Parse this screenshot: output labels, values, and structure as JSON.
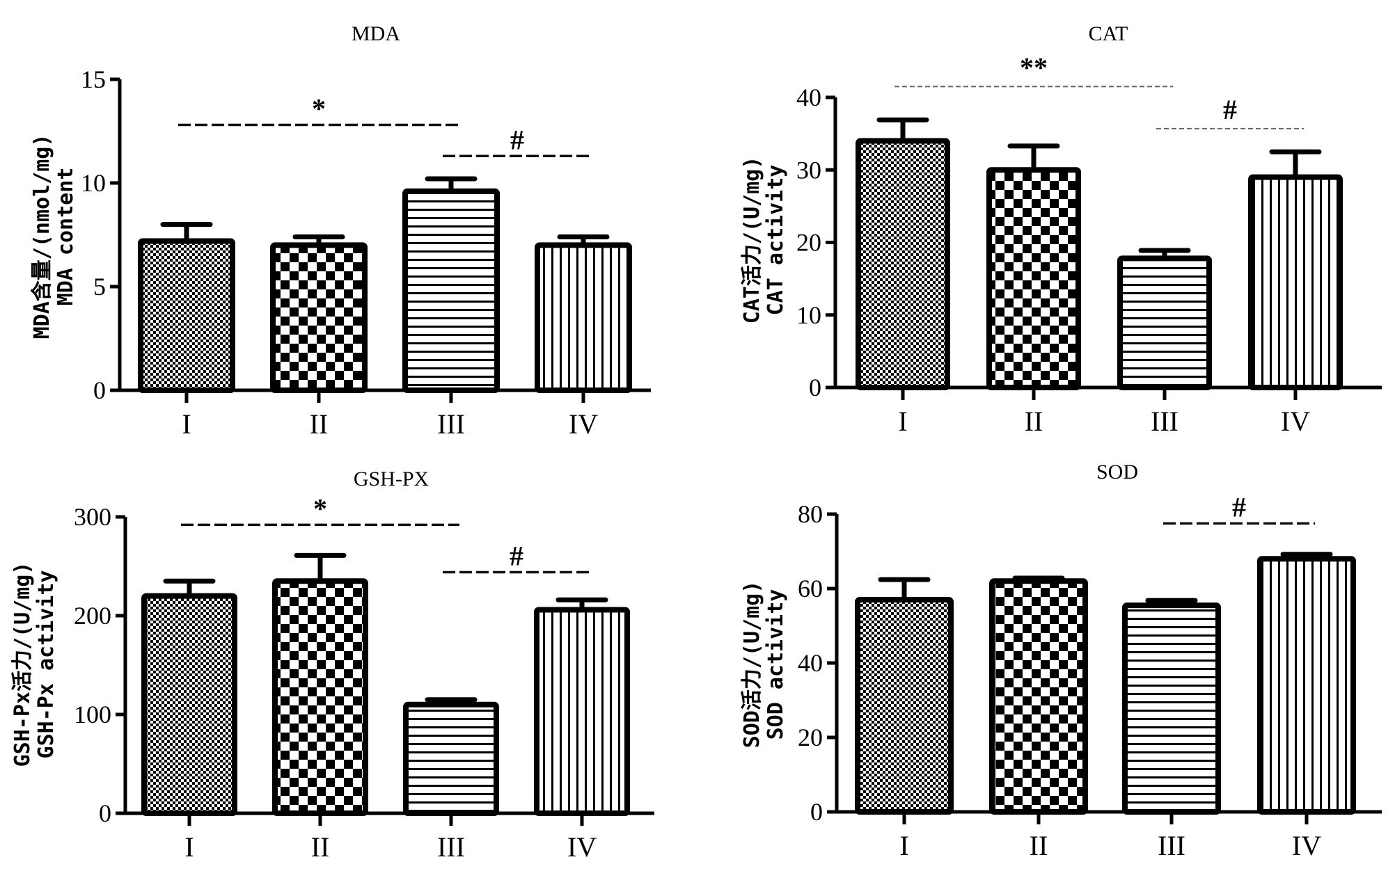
{
  "chart_data": [
    {
      "type": "bar",
      "title": "MDA",
      "ylabel_line1": "MDA含量/(nmol/mg)",
      "ylabel_line2": "MDA content",
      "xlabel": "",
      "categories": [
        "I",
        "II",
        "III",
        "IV"
      ],
      "values": [
        7.2,
        7.0,
        9.6,
        7.0
      ],
      "error_upper": [
        0.8,
        0.4,
        0.6,
        0.4
      ],
      "ylim": [
        0,
        15
      ],
      "yticks": [
        0,
        5,
        10,
        15
      ],
      "significance": [
        {
          "from": "I",
          "to": "III",
          "label": "*",
          "y": 12.8,
          "style": "dark"
        },
        {
          "from": "III",
          "to": "IV",
          "label": "#",
          "y": 11.3,
          "style": "dark"
        }
      ],
      "grid": false
    },
    {
      "type": "bar",
      "title": "CAT",
      "ylabel_line1": "CAT活力/(U/mg)",
      "ylabel_line2": "CAT activity",
      "xlabel": "",
      "categories": [
        "I",
        "II",
        "III",
        "IV"
      ],
      "values": [
        34,
        30,
        17.8,
        29
      ],
      "error_upper": [
        2.9,
        3.3,
        1.1,
        3.5
      ],
      "ylim": [
        0,
        40
      ],
      "yticks": [
        0,
        10,
        20,
        30,
        40
      ],
      "significance": [
        {
          "from": "I",
          "to": "III",
          "label": "**",
          "y": 41.5,
          "style": "light"
        },
        {
          "from": "III",
          "to": "IV",
          "label": "#",
          "y": 35.7,
          "style": "light"
        }
      ],
      "grid": false
    },
    {
      "type": "bar",
      "title": "GSH-PX",
      "ylabel_line1": "GSH-Px活力/(U/mg)",
      "ylabel_line2": "GSH-Px activity",
      "xlabel": "",
      "categories": [
        "I",
        "II",
        "III",
        "IV"
      ],
      "values": [
        220,
        235,
        110,
        206
      ],
      "error_upper": [
        15,
        26,
        5,
        10
      ],
      "ylim": [
        0,
        300
      ],
      "yticks": [
        0,
        100,
        200,
        300
      ],
      "significance": [
        {
          "from": "I",
          "to": "III",
          "label": "*",
          "y": 292,
          "style": "dark"
        },
        {
          "from": "III",
          "to": "IV",
          "label": "#",
          "y": 244,
          "style": "dark"
        }
      ],
      "grid": false
    },
    {
      "type": "bar",
      "title": "SOD",
      "ylabel_line1": "SOD活力/(U/mg)",
      "ylabel_line2": "SOD activity",
      "xlabel": "",
      "categories": [
        "I",
        "II",
        "III",
        "IV"
      ],
      "values": [
        57,
        62,
        55.5,
        68
      ],
      "error_upper": [
        5.4,
        0.8,
        1.3,
        1.2
      ],
      "ylim": [
        0,
        80
      ],
      "yticks": [
        0,
        20,
        40,
        60,
        80
      ],
      "significance": [
        {
          "from": "III",
          "to": "IV",
          "label": "#",
          "y": 77.5,
          "style": "dark"
        }
      ],
      "grid": false
    }
  ],
  "bar_patterns": [
    "fine-checker",
    "coarse-checker",
    "horizontal-stripes",
    "vertical-stripes"
  ]
}
